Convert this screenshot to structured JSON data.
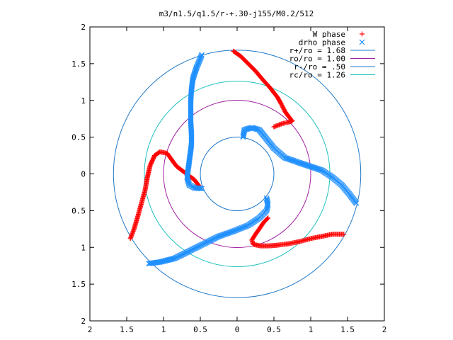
{
  "chart_data": {
    "type": "scatter",
    "title": "m3/n1.5/q1.5/r-+.30-j155/M0.2/512",
    "xlim": [
      -2,
      2
    ],
    "ylim": [
      -2,
      2
    ],
    "x_ticks": [
      -2,
      -1.5,
      -1,
      -0.5,
      0,
      0.5,
      1,
      1.5,
      2
    ],
    "y_ticks": [
      -2,
      -1.5,
      -1,
      -0.5,
      0,
      0.5,
      1,
      1.5,
      2
    ],
    "x_tick_labels": [
      "2",
      "1.5",
      "1",
      "0.5",
      "0",
      "0.5",
      "1",
      "1.5",
      "2"
    ],
    "y_tick_labels": [
      "2",
      "1.5",
      "1",
      "0.5",
      "0",
      "0.5",
      "1",
      "1.5",
      "2"
    ],
    "grid": false,
    "legend_position": "top-right",
    "series": [
      {
        "name": "W phase",
        "kind": "points",
        "marker": "+",
        "color": "#ff0000",
        "arms": [
          [
            [
              -0.05,
              1.67
            ],
            [
              0.05,
              1.6
            ],
            [
              0.15,
              1.5
            ],
            [
              0.25,
              1.4
            ],
            [
              0.35,
              1.28
            ],
            [
              0.45,
              1.17
            ],
            [
              0.55,
              1.04
            ],
            [
              0.6,
              0.95
            ],
            [
              0.65,
              0.85
            ],
            [
              0.7,
              0.78
            ],
            [
              0.75,
              0.72
            ],
            [
              0.68,
              0.7
            ],
            [
              0.6,
              0.68
            ],
            [
              0.5,
              0.64
            ]
          ],
          [
            [
              -1.45,
              -0.88
            ],
            [
              -1.4,
              -0.75
            ],
            [
              -1.35,
              -0.58
            ],
            [
              -1.3,
              -0.4
            ],
            [
              -1.25,
              -0.22
            ],
            [
              -1.22,
              -0.05
            ],
            [
              -1.18,
              0.12
            ],
            [
              -1.12,
              0.25
            ],
            [
              -1.05,
              0.3
            ],
            [
              -0.95,
              0.28
            ],
            [
              -0.88,
              0.18
            ],
            [
              -0.82,
              0.1
            ],
            [
              -0.74,
              0.04
            ],
            [
              -0.66,
              -0.02
            ],
            [
              -0.58,
              -0.08
            ],
            [
              -0.52,
              -0.16
            ]
          ],
          [
            [
              1.45,
              -0.82
            ],
            [
              1.3,
              -0.82
            ],
            [
              1.15,
              -0.85
            ],
            [
              1.0,
              -0.88
            ],
            [
              0.85,
              -0.92
            ],
            [
              0.7,
              -0.95
            ],
            [
              0.55,
              -0.97
            ],
            [
              0.42,
              -0.98
            ],
            [
              0.32,
              -0.98
            ],
            [
              0.22,
              -0.96
            ],
            [
              0.2,
              -0.9
            ],
            [
              0.25,
              -0.82
            ],
            [
              0.3,
              -0.75
            ],
            [
              0.36,
              -0.66
            ],
            [
              0.42,
              -0.6
            ]
          ]
        ]
      },
      {
        "name": "drho phase",
        "kind": "points",
        "marker": "x",
        "color": "#2090ff",
        "arms": [
          [
            [
              0.08,
              0.5
            ],
            [
              0.1,
              0.6
            ],
            [
              0.2,
              0.63
            ],
            [
              0.3,
              0.6
            ],
            [
              0.38,
              0.5
            ],
            [
              0.5,
              0.35
            ],
            [
              0.65,
              0.22
            ],
            [
              0.85,
              0.15
            ],
            [
              1.0,
              0.1
            ],
            [
              1.15,
              0.05
            ],
            [
              1.3,
              -0.05
            ],
            [
              1.42,
              -0.15
            ],
            [
              1.52,
              -0.27
            ],
            [
              1.62,
              -0.4
            ]
          ],
          [
            [
              -0.48,
              -0.2
            ],
            [
              -0.58,
              -0.19
            ],
            [
              -0.65,
              -0.15
            ],
            [
              -0.68,
              -0.05
            ],
            [
              -0.66,
              0.1
            ],
            [
              -0.64,
              0.25
            ],
            [
              -0.62,
              0.4
            ],
            [
              -0.62,
              0.55
            ],
            [
              -0.63,
              0.7
            ],
            [
              -0.63,
              0.85
            ],
            [
              -0.63,
              1.0
            ],
            [
              -0.62,
              1.15
            ],
            [
              -0.6,
              1.3
            ],
            [
              -0.55,
              1.45
            ],
            [
              -0.48,
              1.62
            ]
          ],
          [
            [
              0.4,
              -0.33
            ],
            [
              0.42,
              -0.42
            ],
            [
              0.4,
              -0.5
            ],
            [
              0.3,
              -0.6
            ],
            [
              0.15,
              -0.7
            ],
            [
              -0.05,
              -0.78
            ],
            [
              -0.25,
              -0.85
            ],
            [
              -0.45,
              -0.95
            ],
            [
              -0.65,
              -1.05
            ],
            [
              -0.85,
              -1.15
            ],
            [
              -1.05,
              -1.2
            ],
            [
              -1.2,
              -1.22
            ]
          ]
        ]
      },
      {
        "name": "r+/ro = 1.68",
        "kind": "circle",
        "radius": 1.68,
        "color": "#1f78c8"
      },
      {
        "name": "ro/ro = 1.00",
        "kind": "circle",
        "radius": 1.0,
        "color": "#a020a0"
      },
      {
        "name": "r-/ro = .50",
        "kind": "circle",
        "radius": 0.5,
        "color": "#1f78c8"
      },
      {
        "name": "rc/ro = 1.26",
        "kind": "circle",
        "radius": 1.26,
        "color": "#20c0c0"
      }
    ]
  }
}
